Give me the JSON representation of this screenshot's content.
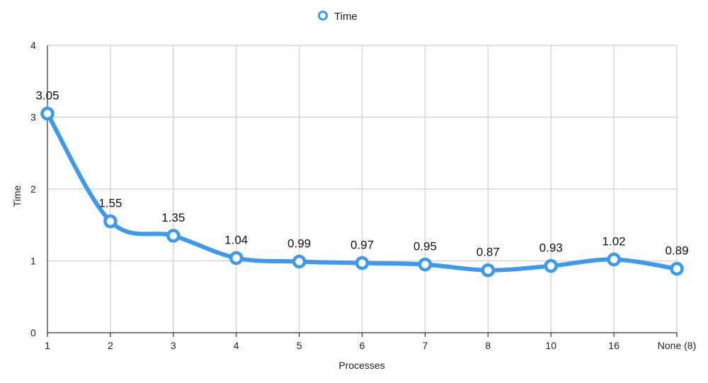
{
  "chart_data": {
    "type": "line",
    "title": "",
    "xlabel": "Processes",
    "ylabel": "Time",
    "categories": [
      "1",
      "2",
      "3",
      "4",
      "5",
      "6",
      "7",
      "8",
      "10",
      "16",
      "None (8)"
    ],
    "series": [
      {
        "name": "Time",
        "values": [
          3.05,
          1.55,
          1.35,
          1.04,
          0.99,
          0.97,
          0.95,
          0.87,
          0.93,
          1.02,
          0.89
        ],
        "labels": [
          "3.05",
          "1.55",
          "1.35",
          "1.04",
          "0.99",
          "0.97",
          "0.95",
          "0.87",
          "0.93",
          "1.02",
          "0.89"
        ],
        "color": "#3d98f0"
      }
    ],
    "ylim": [
      0,
      4
    ],
    "yticks": [
      "0",
      "1",
      "2",
      "3",
      "4"
    ],
    "grid": true,
    "smooth": true,
    "legend_position": "top-center"
  }
}
